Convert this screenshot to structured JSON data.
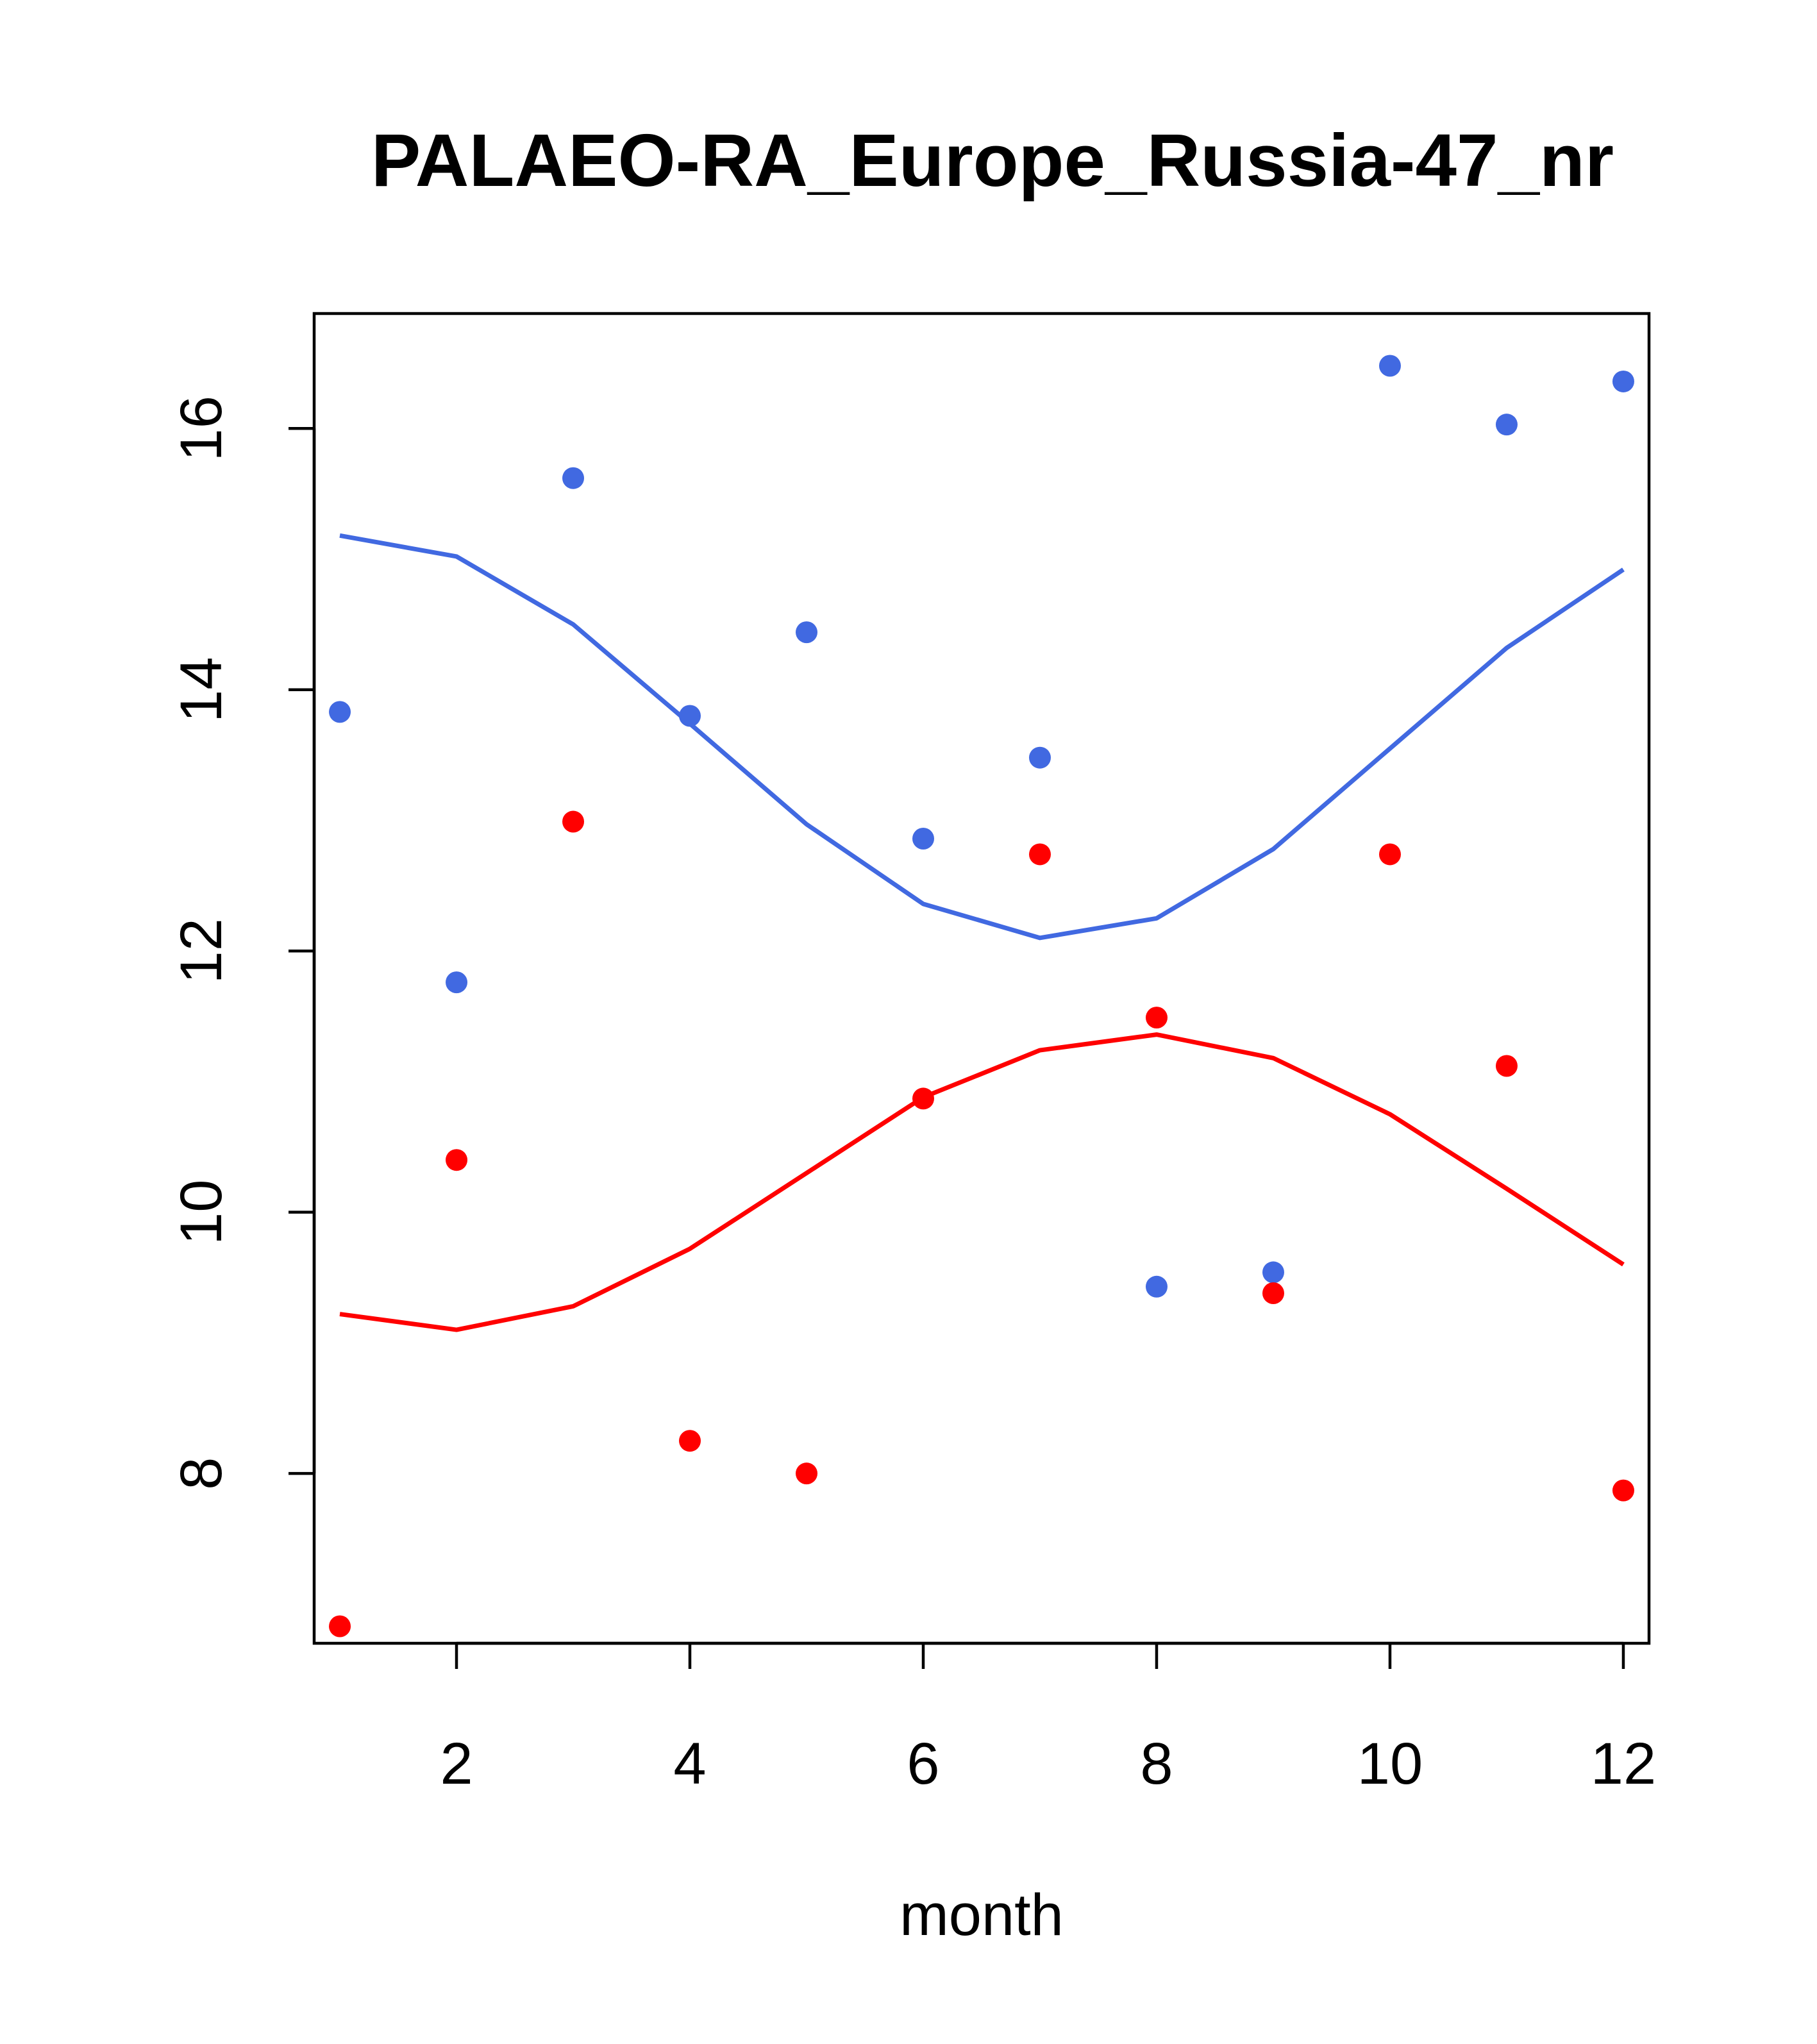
{
  "chart_data": {
    "type": "scatter",
    "title": "PALAEO-RA_Europe_Russia-47_nr",
    "xlabel": "month",
    "ylabel": "",
    "xlim": [
      0.78,
      12.22
    ],
    "ylim": [
      6.7,
      16.88
    ],
    "x_ticks": [
      2,
      4,
      6,
      8,
      10,
      12
    ],
    "y_ticks": [
      8,
      10,
      12,
      14,
      16
    ],
    "grid": false,
    "legend": "none",
    "series": [
      {
        "color": "#4169E1",
        "x": [
          1,
          2,
          3,
          4,
          5,
          6,
          7,
          8,
          9,
          10,
          11,
          12
        ],
        "points": [
          13.83,
          11.76,
          15.62,
          13.8,
          14.44,
          12.86,
          13.48,
          9.43,
          9.54,
          16.48,
          16.03,
          16.36
        ],
        "line": [
          15.18,
          15.02,
          14.5,
          13.74,
          12.97,
          12.36,
          12.1,
          12.25,
          12.78,
          13.55,
          14.32,
          14.92
        ]
      },
      {
        "color": "#FF0000",
        "x": [
          1,
          2,
          3,
          4,
          5,
          6,
          7,
          8,
          9,
          10,
          11,
          12
        ],
        "points": [
          6.83,
          10.4,
          12.99,
          8.25,
          8.0,
          10.87,
          12.74,
          11.49,
          9.38,
          12.74,
          11.12,
          7.87
        ],
        "line": [
          9.22,
          9.1,
          9.28,
          9.72,
          10.3,
          10.88,
          11.24,
          11.36,
          11.18,
          10.75,
          10.18,
          9.6
        ]
      }
    ]
  }
}
